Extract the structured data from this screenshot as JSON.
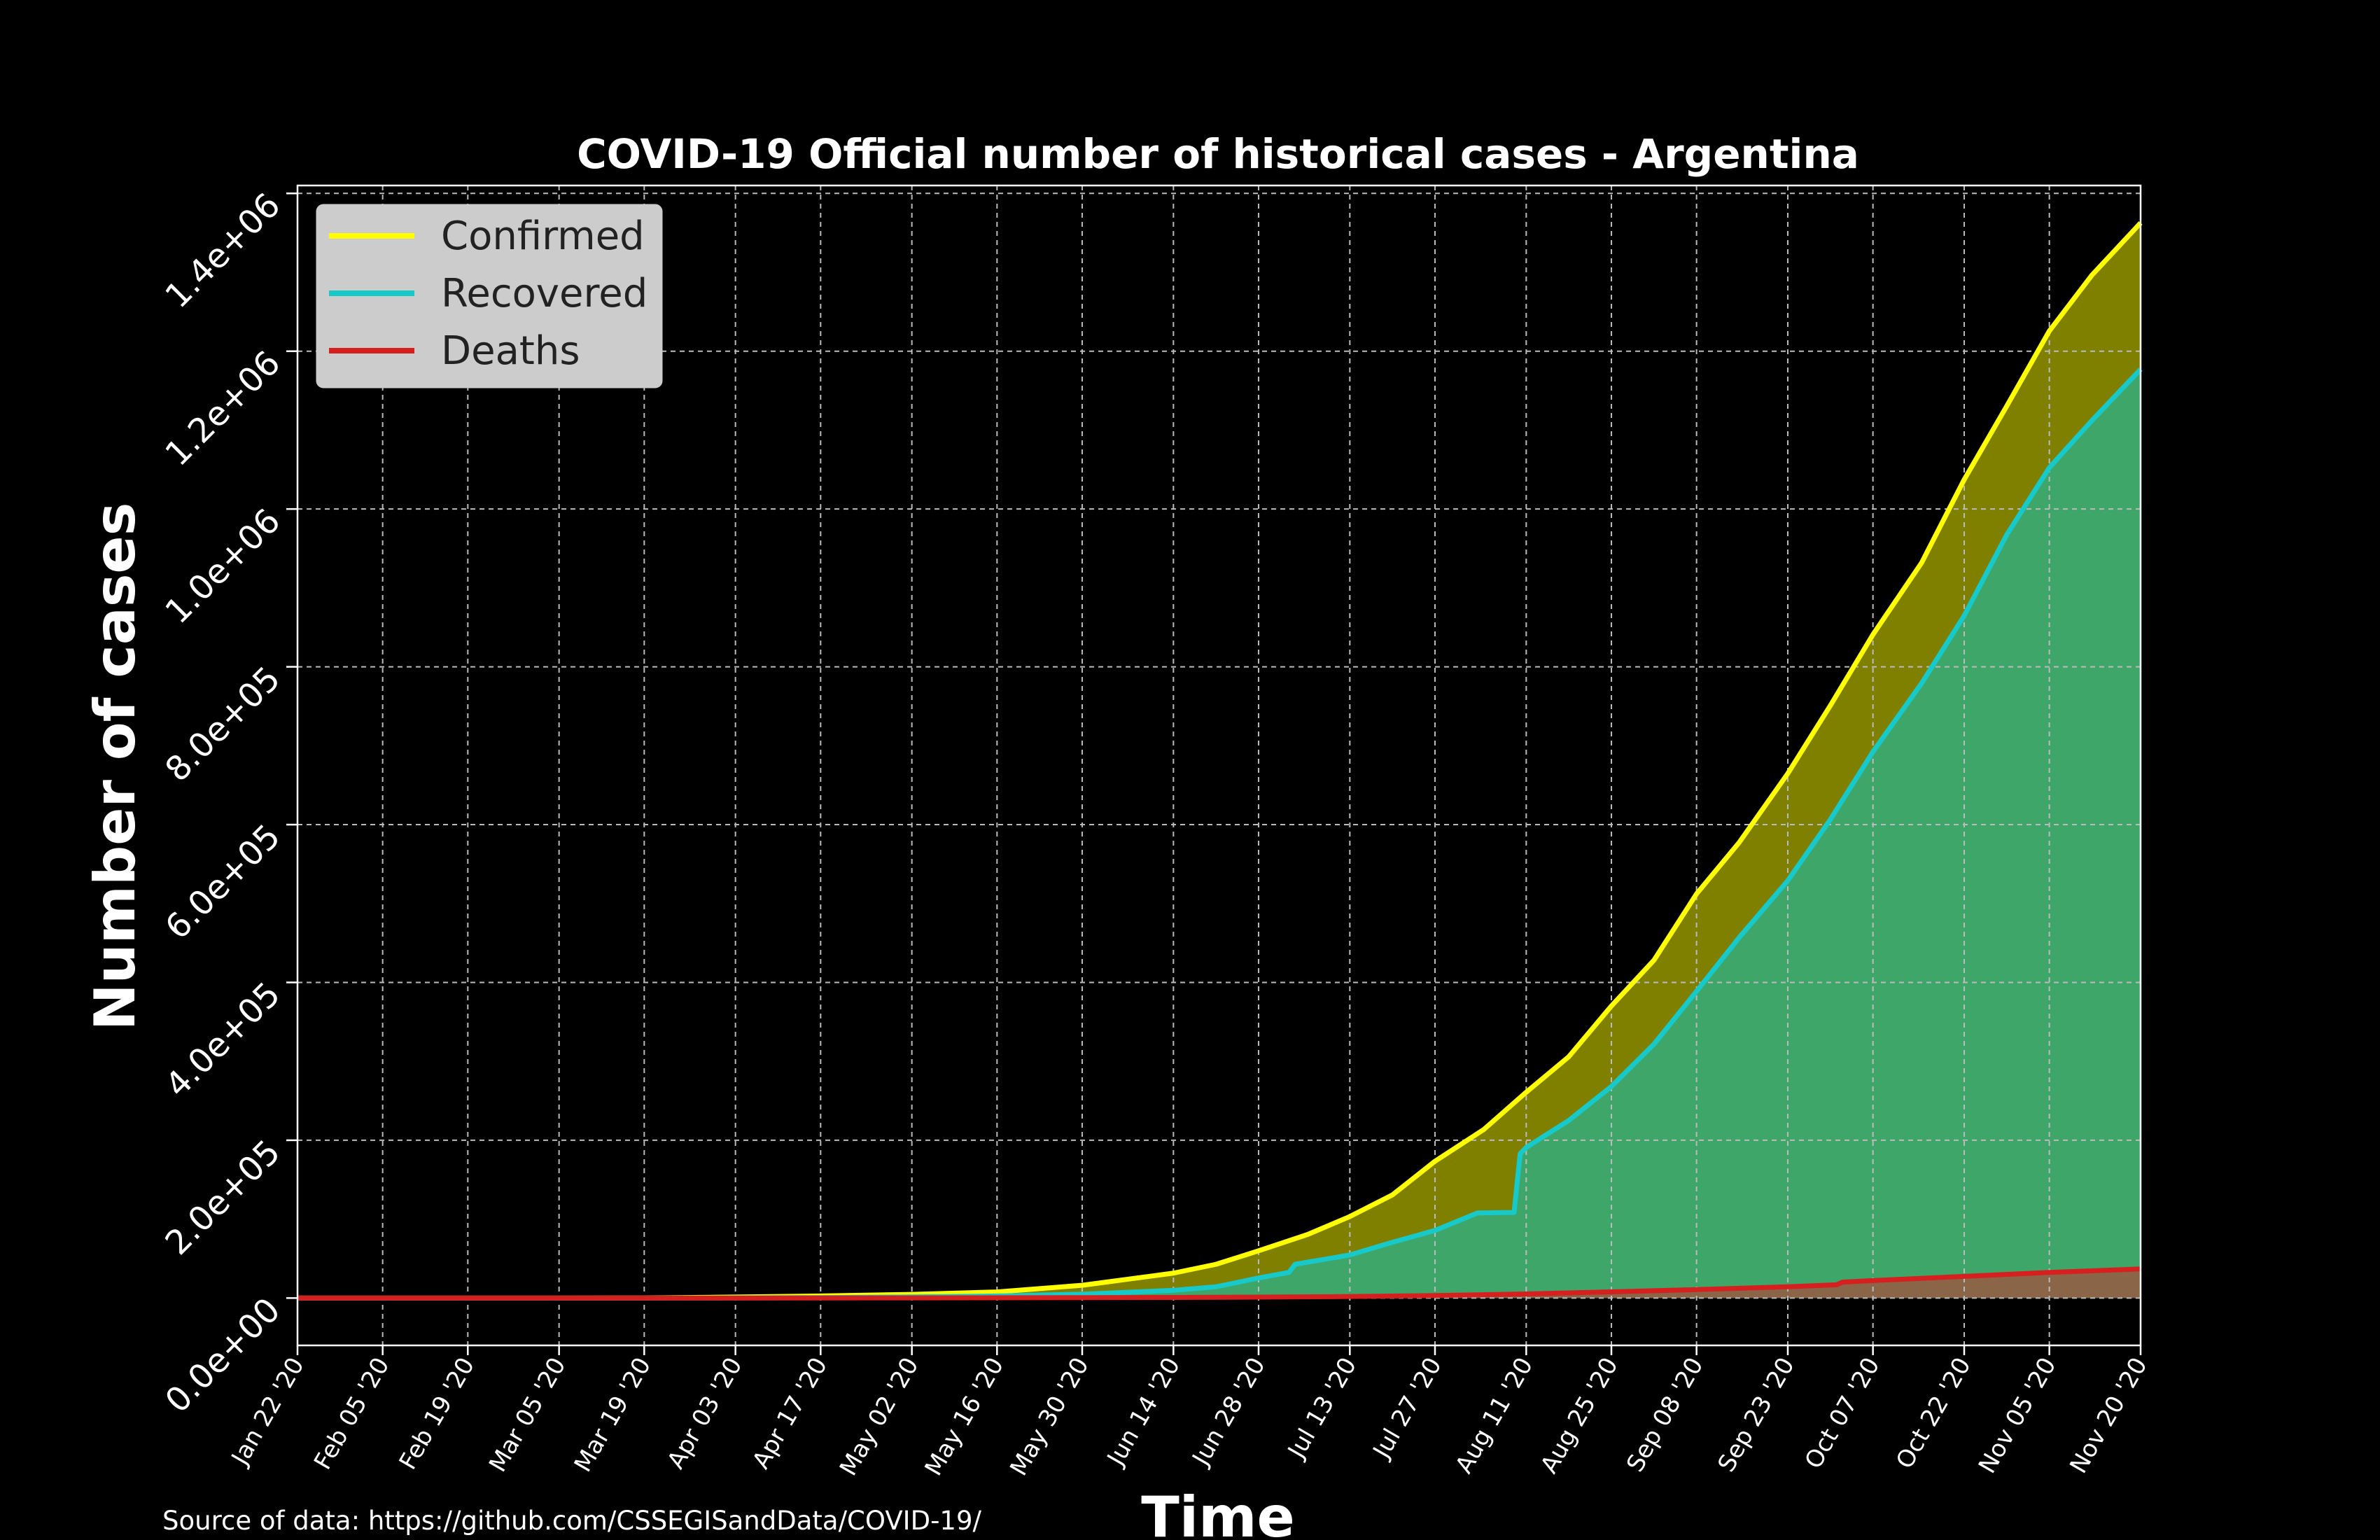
{
  "chart_data": {
    "type": "area",
    "title": "COVID-19 Official number of historical cases - Argentina",
    "xlabel": "Time",
    "ylabel": "Number of cases",
    "source": "Source of data: https://github.com/CSSEGISandData/COVID-19/",
    "ylim": [
      -60000,
      1410000
    ],
    "yticks": [
      {
        "value": 0,
        "label": "0.0e+00"
      },
      {
        "value": 200000,
        "label": "2.0e+05"
      },
      {
        "value": 400000,
        "label": "4.0e+05"
      },
      {
        "value": 600000,
        "label": "6.0e+05"
      },
      {
        "value": 800000,
        "label": "8.0e+05"
      },
      {
        "value": 1000000,
        "label": "1.0e+06"
      },
      {
        "value": 1200000,
        "label": "1.2e+06"
      },
      {
        "value": 1400000,
        "label": "1.4e+06"
      }
    ],
    "xlim": [
      "2020-01-22",
      "2020-11-20"
    ],
    "xticks": [
      {
        "date": "2020-01-22",
        "label": "Jan 22 '20"
      },
      {
        "date": "2020-02-05",
        "label": "Feb 05 '20"
      },
      {
        "date": "2020-02-19",
        "label": "Feb 19 '20"
      },
      {
        "date": "2020-03-05",
        "label": "Mar 05 '20"
      },
      {
        "date": "2020-03-19",
        "label": "Mar 19 '20"
      },
      {
        "date": "2020-04-03",
        "label": "Apr 03 '20"
      },
      {
        "date": "2020-04-17",
        "label": "Apr 17 '20"
      },
      {
        "date": "2020-05-02",
        "label": "May 02 '20"
      },
      {
        "date": "2020-05-16",
        "label": "May 16 '20"
      },
      {
        "date": "2020-05-30",
        "label": "May 30 '20"
      },
      {
        "date": "2020-06-14",
        "label": "Jun 14 '20"
      },
      {
        "date": "2020-06-28",
        "label": "Jun 28 '20"
      },
      {
        "date": "2020-07-13",
        "label": "Jul 13 '20"
      },
      {
        "date": "2020-07-27",
        "label": "Jul 27 '20"
      },
      {
        "date": "2020-08-11",
        "label": "Aug 11 '20"
      },
      {
        "date": "2020-08-25",
        "label": "Aug 25 '20"
      },
      {
        "date": "2020-09-08",
        "label": "Sep 08 '20"
      },
      {
        "date": "2020-09-23",
        "label": "Sep 23 '20"
      },
      {
        "date": "2020-10-07",
        "label": "Oct 07 '20"
      },
      {
        "date": "2020-10-22",
        "label": "Oct 22 '20"
      },
      {
        "date": "2020-11-05",
        "label": "Nov 05 '20"
      },
      {
        "date": "2020-11-20",
        "label": "Nov 20 '20"
      }
    ],
    "grid": true,
    "legend_position": "top-left",
    "series": [
      {
        "name": "Confirmed",
        "color": "#ffff00",
        "fill": "#808000",
        "points": [
          [
            "2020-01-22",
            0
          ],
          [
            "2020-03-05",
            0
          ],
          [
            "2020-03-19",
            100
          ],
          [
            "2020-04-03",
            1300
          ],
          [
            "2020-04-17",
            2700
          ],
          [
            "2020-05-02",
            4700
          ],
          [
            "2020-05-16",
            7800
          ],
          [
            "2020-05-30",
            16200
          ],
          [
            "2020-06-14",
            31600
          ],
          [
            "2020-06-21",
            42800
          ],
          [
            "2020-06-28",
            59900
          ],
          [
            "2020-07-06",
            80400
          ],
          [
            "2020-07-13",
            103300
          ],
          [
            "2020-07-20",
            130700
          ],
          [
            "2020-07-27",
            173400
          ],
          [
            "2020-08-04",
            213500
          ],
          [
            "2020-08-11",
            260900
          ],
          [
            "2020-08-18",
            305900
          ],
          [
            "2020-08-25",
            370200
          ],
          [
            "2020-09-01",
            428200
          ],
          [
            "2020-09-08",
            512300
          ],
          [
            "2020-09-15",
            577300
          ],
          [
            "2020-09-23",
            664800
          ],
          [
            "2020-09-30",
            751000
          ],
          [
            "2020-10-07",
            840900
          ],
          [
            "2020-10-15",
            931900
          ],
          [
            "2020-10-22",
            1037300
          ],
          [
            "2020-10-29",
            1130500
          ],
          [
            "2020-11-05",
            1225700
          ],
          [
            "2020-11-12",
            1296400
          ],
          [
            "2020-11-20",
            1362600
          ]
        ]
      },
      {
        "name": "Recovered",
        "color": "#17c9c9",
        "fill": "#3fa66a",
        "points": [
          [
            "2020-01-22",
            0
          ],
          [
            "2020-03-19",
            0
          ],
          [
            "2020-04-03",
            200
          ],
          [
            "2020-04-17",
            600
          ],
          [
            "2020-05-02",
            1400
          ],
          [
            "2020-05-16",
            2600
          ],
          [
            "2020-05-30",
            4900
          ],
          [
            "2020-06-14",
            9800
          ],
          [
            "2020-06-21",
            14300
          ],
          [
            "2020-06-28",
            25400
          ],
          [
            "2020-07-03",
            32500
          ],
          [
            "2020-07-04",
            42800
          ],
          [
            "2020-07-13",
            54600
          ],
          [
            "2020-07-20",
            70700
          ],
          [
            "2020-07-27",
            85700
          ],
          [
            "2020-08-03",
            107900
          ],
          [
            "2020-08-09",
            108500
          ],
          [
            "2020-08-10",
            182800
          ],
          [
            "2020-08-11",
            190900
          ],
          [
            "2020-08-18",
            225100
          ],
          [
            "2020-08-25",
            268200
          ],
          [
            "2020-09-01",
            321800
          ],
          [
            "2020-09-08",
            388800
          ],
          [
            "2020-09-15",
            456800
          ],
          [
            "2020-09-23",
            529100
          ],
          [
            "2020-09-30",
            606600
          ],
          [
            "2020-10-07",
            692400
          ],
          [
            "2020-10-15",
            779100
          ],
          [
            "2020-10-22",
            864800
          ],
          [
            "2020-10-29",
            967400
          ],
          [
            "2020-11-05",
            1052500
          ],
          [
            "2020-11-12",
            1112200
          ],
          [
            "2020-11-20",
            1177100
          ]
        ]
      },
      {
        "name": "Deaths",
        "color": "#d62020",
        "fill": "#8a6548",
        "points": [
          [
            "2020-01-22",
            0
          ],
          [
            "2020-04-03",
            40
          ],
          [
            "2020-05-02",
            250
          ],
          [
            "2020-05-30",
            530
          ],
          [
            "2020-06-14",
            820
          ],
          [
            "2020-06-28",
            1220
          ],
          [
            "2020-07-13",
            1940
          ],
          [
            "2020-07-27",
            3180
          ],
          [
            "2020-08-11",
            5250
          ],
          [
            "2020-08-25",
            7840
          ],
          [
            "2020-09-08",
            10700
          ],
          [
            "2020-09-23",
            14300
          ],
          [
            "2020-10-01",
            16800
          ],
          [
            "2020-10-02",
            20200
          ],
          [
            "2020-10-07",
            22200
          ],
          [
            "2020-10-22",
            27500
          ],
          [
            "2020-11-05",
            32500
          ],
          [
            "2020-11-20",
            36900
          ]
        ]
      }
    ]
  }
}
